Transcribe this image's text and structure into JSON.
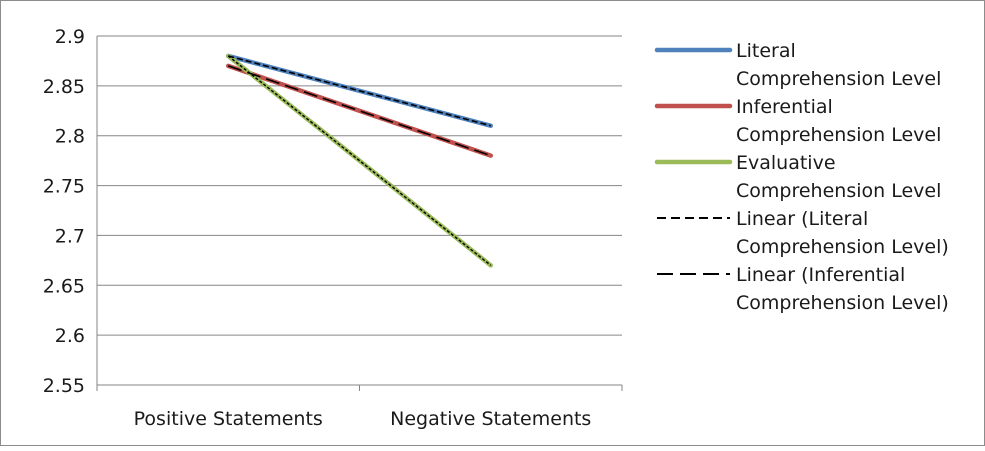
{
  "chart_data": {
    "type": "line",
    "categories": [
      "Positive Statements",
      "Negative Statements"
    ],
    "ylim": [
      2.55,
      2.9
    ],
    "yticks": [
      "2.9",
      "2.85",
      "2.8",
      "2.75",
      "2.7",
      "2.65",
      "2.6",
      "2.55"
    ],
    "ytick_values": [
      2.9,
      2.85,
      2.8,
      2.75,
      2.7,
      2.65,
      2.6,
      2.55
    ],
    "grid": true,
    "legend_position": "right",
    "series": [
      {
        "name": "Literal Comprehension Level",
        "values": [
          2.88,
          2.81
        ],
        "color": "#4f81bd",
        "style": "solid"
      },
      {
        "name": "Inferential Comprehension Level",
        "values": [
          2.87,
          2.78
        ],
        "color": "#c0504d",
        "style": "solid"
      },
      {
        "name": "Evaluative Comprehension Level",
        "values": [
          2.88,
          2.67
        ],
        "color": "#9bbb59",
        "style": "solid"
      }
    ],
    "trendlines": [
      {
        "name": "Linear (Literal Comprehension Level)",
        "of": 0,
        "color": "#000000",
        "style": "short-dash"
      },
      {
        "name": "Linear (Inferential Comprehension Level)",
        "of": 1,
        "color": "#000000",
        "style": "long-dash"
      }
    ],
    "legend": [
      {
        "line1": "Literal",
        "line2": "Comprehension Level",
        "color": "#4f81bd",
        "style": "solid"
      },
      {
        "line1": "Inferential",
        "line2": "Comprehension Level",
        "color": "#c0504d",
        "style": "solid"
      },
      {
        "line1": "Evaluative",
        "line2": "Comprehension Level",
        "color": "#9bbb59",
        "style": "solid"
      },
      {
        "line1": "Linear (Literal",
        "line2": "Comprehension Level)",
        "color": "#000000",
        "style": "short-dash"
      },
      {
        "line1": "Linear (Inferential",
        "line2": "Comprehension Level)",
        "color": "#000000",
        "style": "long-dash"
      }
    ]
  }
}
